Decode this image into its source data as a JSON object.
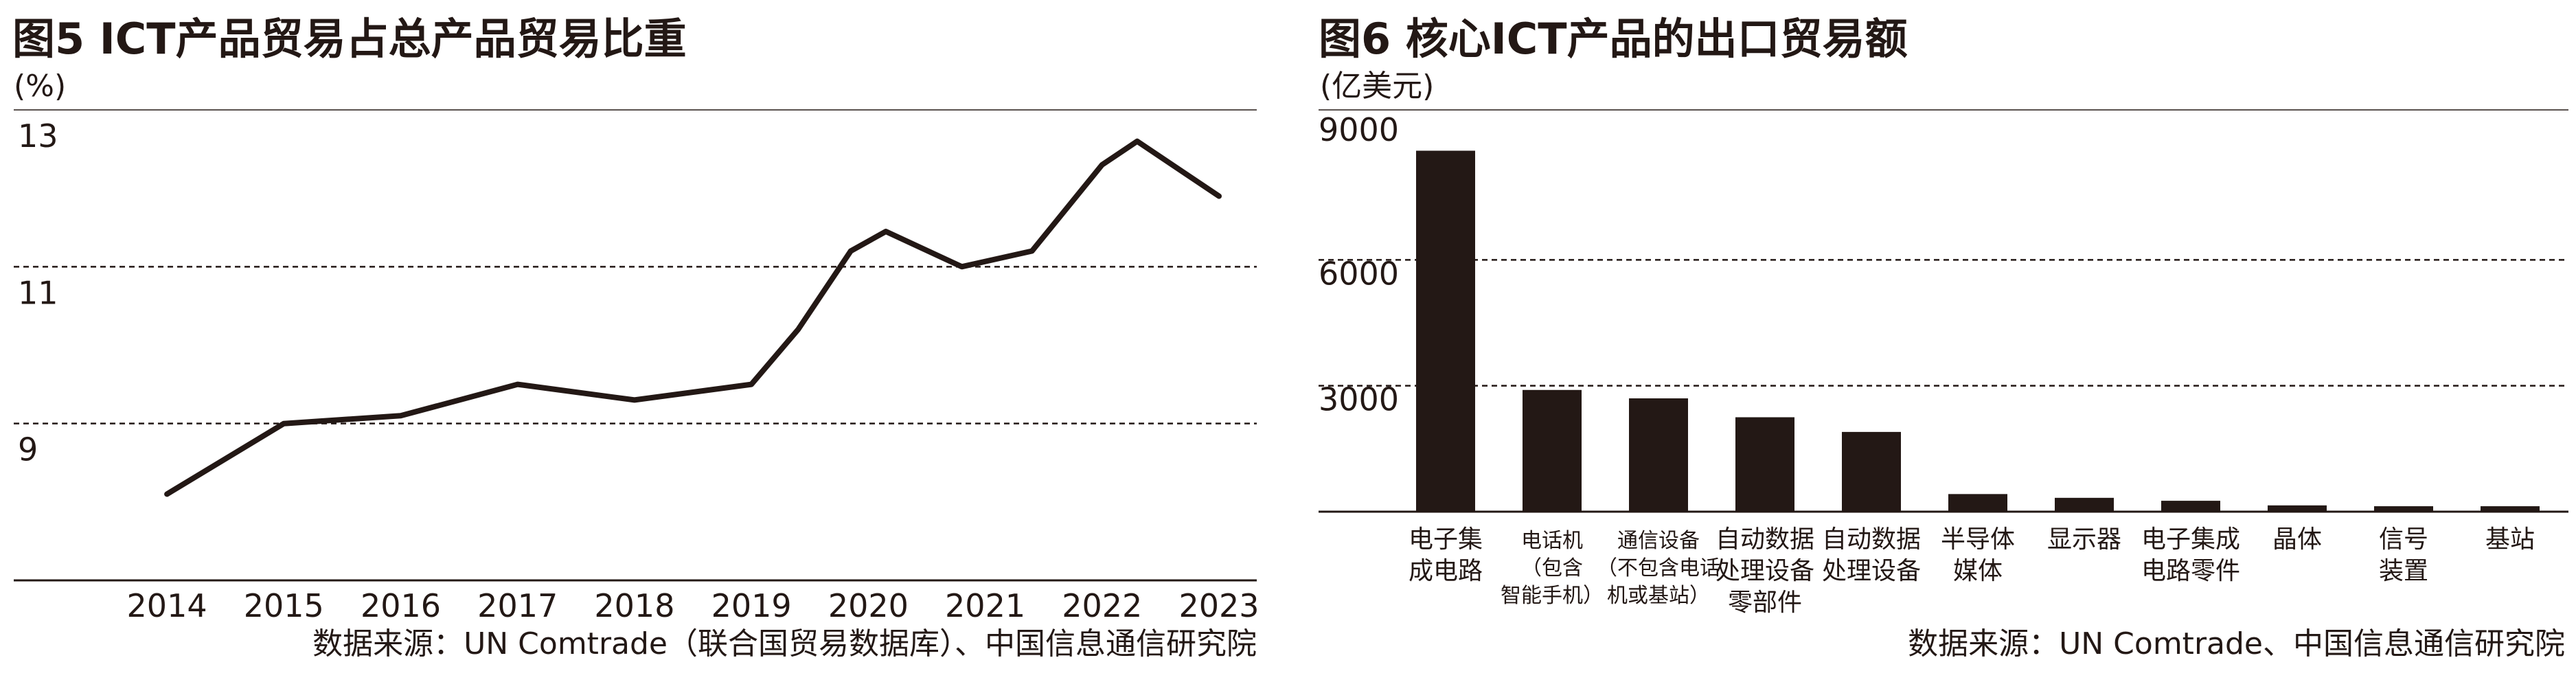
{
  "chart_data": [
    {
      "type": "line",
      "title": "图5 ICT产品贸易占总产品贸易比重",
      "unit": "(%)",
      "x": [
        "2014",
        "2015",
        "2016",
        "2017",
        "2018",
        "2019",
        "2020",
        "2021",
        "2022",
        "2023"
      ],
      "series": [
        {
          "points": [
            [
              2014.0,
              8.1
            ],
            [
              2015.0,
              9.0
            ],
            [
              2016.0,
              9.1
            ],
            [
              2017.0,
              9.5
            ],
            [
              2018.0,
              9.3
            ],
            [
              2019.0,
              9.5
            ],
            [
              2019.4,
              10.2
            ],
            [
              2019.85,
              11.2
            ],
            [
              2020.15,
              11.45
            ],
            [
              2020.8,
              11.0
            ],
            [
              2021.4,
              11.2
            ],
            [
              2022.0,
              12.3
            ],
            [
              2022.3,
              12.6
            ],
            [
              2023.0,
              11.9
            ]
          ]
        }
      ],
      "yticks": [
        "13",
        "11",
        "9"
      ],
      "ylim": [
        7,
        13
      ],
      "xlim": [
        2013.6,
        2023.0
      ],
      "grid": "dashed",
      "source": "数据来源：UN Comtrade（联合国贸易数据库）、中国信息通信研究院",
      "line_color": "#231815"
    },
    {
      "type": "bar",
      "title": "图6 核心ICT产品的出口贸易额",
      "unit": "(亿美元)",
      "categories": [
        [
          "电子集",
          "成电路"
        ],
        [
          "电话机",
          "（包含",
          "智能手机）"
        ],
        [
          "通信设备",
          "（不包含电话",
          "机或基站）"
        ],
        [
          "自动数据",
          "处理设备",
          "零部件"
        ],
        [
          "自动数据",
          "处理设备"
        ],
        [
          "半导体",
          "媒体"
        ],
        [
          "显示器"
        ],
        [
          "电子集成",
          "电路零件"
        ],
        [
          "晶体"
        ],
        [
          "信号",
          "装置"
        ],
        [
          "基站"
        ]
      ],
      "values": [
        8600,
        2900,
        2700,
        2250,
        1900,
        420,
        330,
        260,
        150,
        130,
        130
      ],
      "yticks": [
        "9000",
        "6000",
        "3000"
      ],
      "ylim": [
        0,
        9000
      ],
      "grid": "dashed",
      "source": "数据来源：UN Comtrade、中国信息通信研究院",
      "bar_color": "#231815"
    }
  ]
}
